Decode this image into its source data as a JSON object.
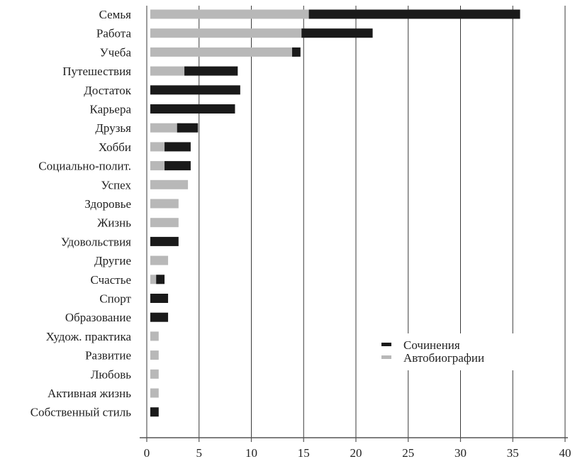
{
  "chart_data": {
    "type": "bar",
    "orientation": "horizontal",
    "stacked": true,
    "categories": [
      "Семья",
      "Работа",
      "Учеба",
      "Путешествия",
      "Достаток",
      "Карьера",
      "Друзья",
      "Хобби",
      "Социально-полит.",
      "Успех",
      "Здоровье",
      "Жизнь",
      "Удовольствия",
      "Другие",
      "Счастье",
      "Спорт",
      "Образование",
      "Худож. практика",
      "Развитие",
      "Любовь",
      "Активная жизнь",
      "Собственный стиль"
    ],
    "series": [
      {
        "name": "Автобиографии",
        "color": "#b8b8b8",
        "values": [
          15.5,
          14.8,
          13.9,
          3.6,
          0,
          0,
          2.9,
          1.7,
          1.7,
          3.6,
          2.7,
          2.7,
          0,
          1.7,
          0.9,
          0,
          0,
          0.8,
          0.8,
          0.8,
          0.8,
          0
        ]
      },
      {
        "name": "Сочинения",
        "color": "#1a1a1a",
        "values": [
          20.2,
          6.8,
          0.8,
          5.1,
          8.6,
          8.1,
          2.0,
          2.5,
          2.5,
          0,
          0,
          0,
          2.7,
          0,
          0.8,
          1.7,
          1.7,
          0,
          0,
          0,
          0,
          0.8
        ]
      }
    ],
    "x_ticks": [
      0,
      5,
      10,
      15,
      20,
      25,
      30,
      35,
      40
    ],
    "xlim": [
      0,
      40
    ],
    "grid": "vertical",
    "legend": {
      "position": "lower-right",
      "order": [
        "Сочинения",
        "Автобиографии"
      ]
    }
  }
}
